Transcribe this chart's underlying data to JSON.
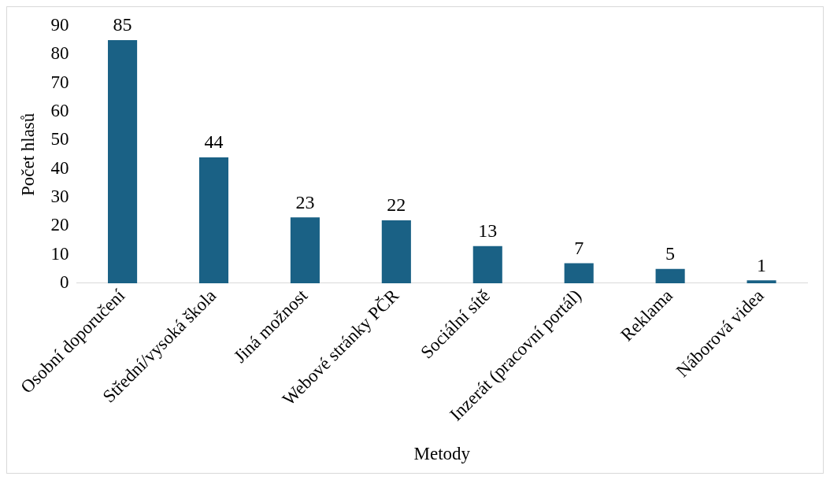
{
  "chart_data": {
    "type": "bar",
    "xlabel": "Metody",
    "ylabel": "Počet hlasů",
    "categories": [
      "Osobní doporučení",
      "Střední/vysoká škola",
      "Jiná možnost",
      "Webové stránky PČR",
      "Sociální sítě",
      "Inzerát (pracovní portál)",
      "Reklama",
      "Náborová videa"
    ],
    "values": [
      85,
      44,
      23,
      22,
      13,
      7,
      5,
      1
    ],
    "color": "#1a6185",
    "ylim": [
      0,
      90
    ],
    "yticks": [
      0,
      10,
      20,
      30,
      40,
      50,
      60,
      70,
      80,
      90
    ],
    "grid": false,
    "data_labels": true
  }
}
